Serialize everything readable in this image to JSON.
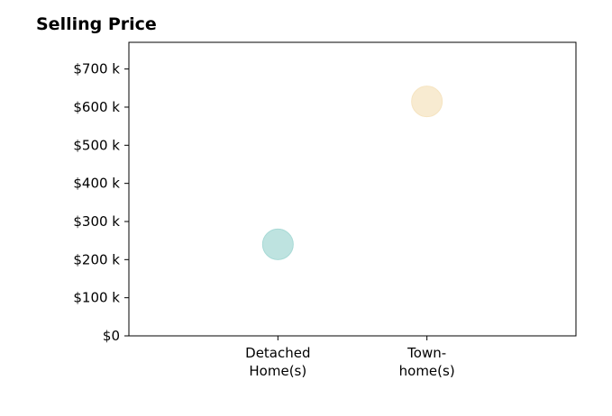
{
  "chart_data": {
    "type": "scatter",
    "title": "Selling Price",
    "xlabel": "",
    "ylabel": "",
    "categories": [
      [
        "Detached",
        "Home(s)"
      ],
      [
        "Town-",
        "home(s)"
      ]
    ],
    "points": [
      {
        "category_index": 0,
        "value": 240000,
        "color": "#a8dad6"
      },
      {
        "category_index": 1,
        "value": 615000,
        "color": "#f6e4c1"
      }
    ],
    "ylim": [
      0,
      770000
    ],
    "y_ticks": [
      0,
      100000,
      200000,
      300000,
      400000,
      500000,
      600000,
      700000
    ],
    "y_tick_labels": [
      "$0",
      "$100 k",
      "$200 k",
      "$300 k",
      "$400 k",
      "$500 k",
      "$600 k",
      "$700 k"
    ],
    "grid": false,
    "legend": "none"
  }
}
